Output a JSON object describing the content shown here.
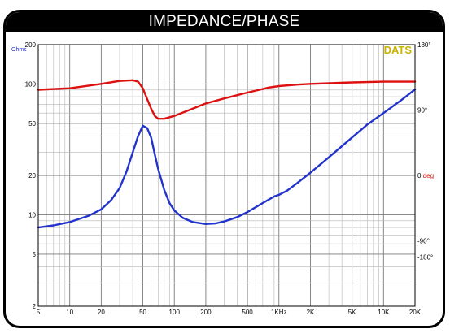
{
  "chart_data": {
    "type": "line",
    "title": "IMPEDANCE/PHASE",
    "watermark": "DATS",
    "x_scale": "log",
    "xlim": [
      5,
      20000
    ],
    "x_ticks": [
      5,
      10,
      20,
      50,
      100,
      200,
      500,
      1000,
      2000,
      5000,
      10000,
      20000
    ],
    "x_tick_labels": [
      "5",
      "10",
      "20",
      "50",
      "100",
      "200",
      "500",
      "1KHz",
      "2K",
      "5K",
      "10K",
      "20K"
    ],
    "y_left_scale": "log",
    "ylim_left": [
      2,
      200
    ],
    "y_left_ticks": [
      2,
      5,
      10,
      20,
      50,
      100,
      200
    ],
    "y_left_tick_labels": [
      "2",
      "5",
      "10",
      "20",
      "50",
      "100",
      "200"
    ],
    "ylabel_left": "Ohms",
    "ylim_right": [
      -180,
      180
    ],
    "y_right_ticks": [
      180,
      90,
      0,
      -90,
      -180
    ],
    "y_right_tick_labels": [
      "180°",
      "90°",
      "0",
      "-90°",
      "-180°"
    ],
    "ylabel_right": "deg",
    "grid": true,
    "colors": {
      "impedance": "#2233cc",
      "phase": "#dd1111",
      "watermark": "#c9b400",
      "ohms_label": "#2233cc",
      "deg_label": "#dd1111"
    },
    "series": [
      {
        "key": "impedance",
        "axis": "left",
        "x": [
          5,
          7,
          10,
          15,
          20,
          25,
          30,
          35,
          40,
          45,
          50,
          55,
          60,
          65,
          70,
          80,
          90,
          100,
          120,
          150,
          200,
          250,
          300,
          400,
          500,
          700,
          900,
          1000,
          1200,
          1500,
          2000,
          3000,
          5000,
          7000,
          10000,
          15000,
          20000
        ],
        "y": [
          8.0,
          8.3,
          8.8,
          9.8,
          11.0,
          13.0,
          16.0,
          21.5,
          30.0,
          40.0,
          48.0,
          46.0,
          39.0,
          29.0,
          22.5,
          15.5,
          12.3,
          10.8,
          9.5,
          8.8,
          8.5,
          8.6,
          8.9,
          9.6,
          10.5,
          12.3,
          13.8,
          14.2,
          15.3,
          17.5,
          21.0,
          27.5,
          39.0,
          49.0,
          60.0,
          76.0,
          91.0
        ]
      },
      {
        "key": "phase",
        "axis": "right",
        "x": [
          5,
          10,
          20,
          30,
          40,
          45,
          50,
          55,
          60,
          65,
          70,
          80,
          100,
          150,
          200,
          300,
          500,
          800,
          1000,
          1500,
          2000,
          5000,
          10000,
          20000
        ],
        "y": [
          118,
          120,
          126,
          130,
          131,
          129,
          120,
          105,
          92,
          82,
          78,
          78,
          82,
          92,
          99,
          106,
          114,
          121,
          123,
          125,
          126,
          128,
          129,
          129
        ]
      }
    ]
  }
}
